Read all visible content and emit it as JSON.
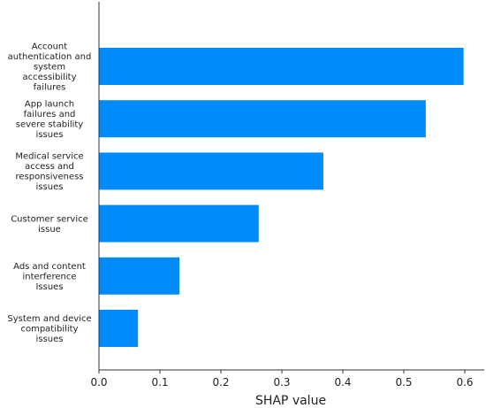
{
  "chart_data": {
    "type": "bar",
    "orientation": "horizontal",
    "xlabel": "SHAP value",
    "ylabel": "",
    "title": "",
    "xlim": [
      0.0,
      0.6
    ],
    "xticks": [
      0.0,
      0.1,
      0.2,
      0.3,
      0.4,
      0.5,
      0.6
    ],
    "xtick_labels": [
      "0.0",
      "0.1",
      "0.2",
      "0.3",
      "0.4",
      "0.5",
      "0.6"
    ],
    "grid": false,
    "bar_color": "#008bfb",
    "categories": [
      {
        "label_lines": [
          "Account",
          "authentication and",
          "system",
          "accessibility",
          "failures"
        ],
        "value": 0.598
      },
      {
        "label_lines": [
          "App launch",
          "failures and",
          "severe stability",
          "issues"
        ],
        "value": 0.536
      },
      {
        "label_lines": [
          "Medical service",
          "access and",
          "responsiveness",
          "issues"
        ],
        "value": 0.368
      },
      {
        "label_lines": [
          "Customer service",
          "issue"
        ],
        "value": 0.262
      },
      {
        "label_lines": [
          "Ads and content",
          "interference",
          "Issues"
        ],
        "value": 0.132
      },
      {
        "label_lines": [
          "System and device",
          "compatibility",
          "issues"
        ],
        "value": 0.064
      }
    ]
  }
}
